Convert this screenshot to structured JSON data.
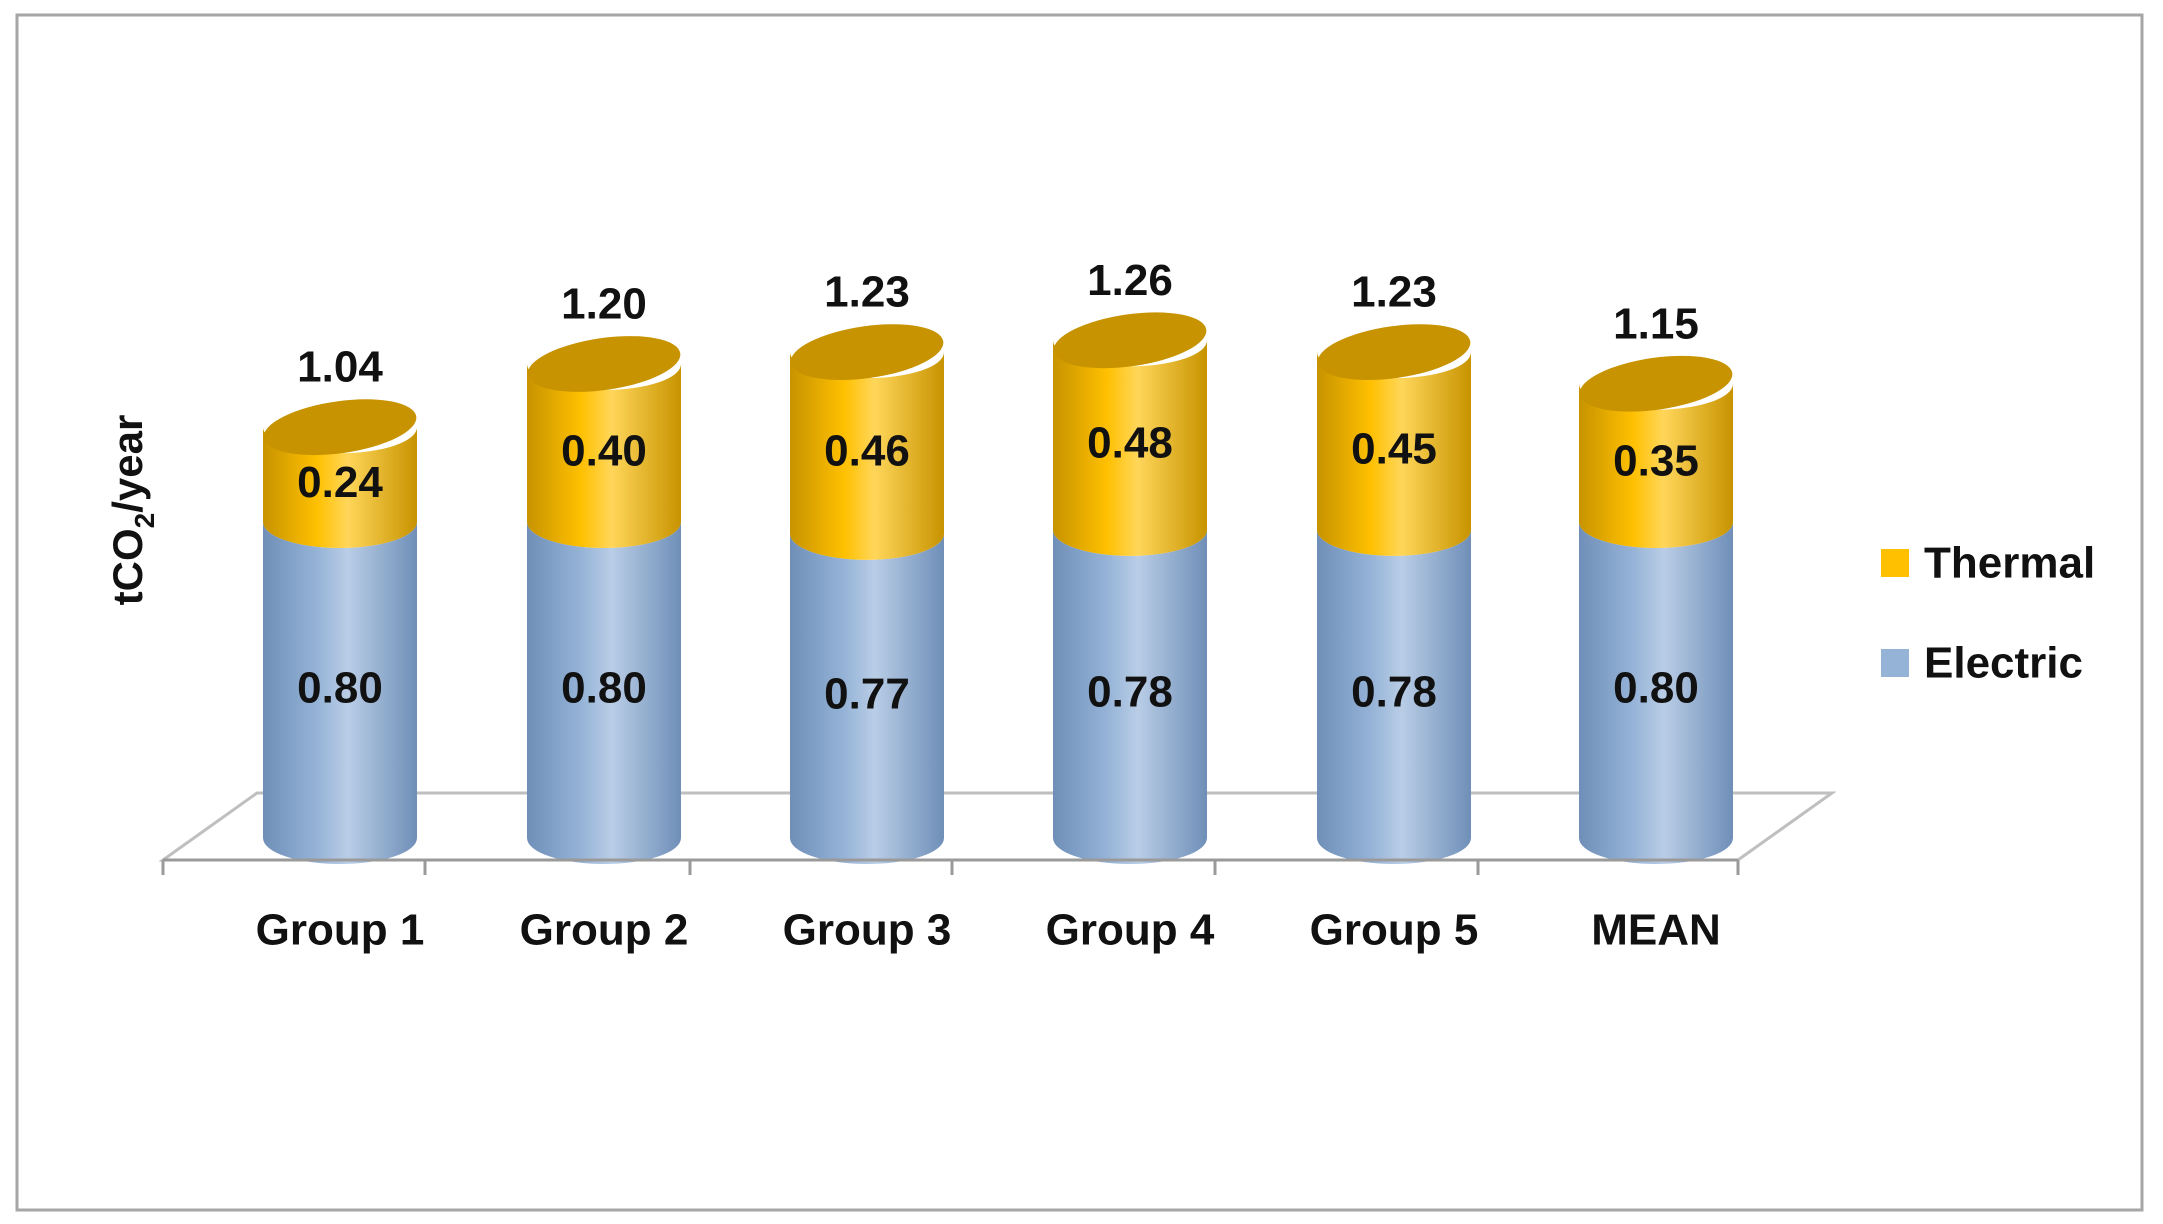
{
  "chart_data": {
    "type": "bar",
    "stacked": true,
    "style": "3d-cylinder",
    "categories": [
      "Group 1",
      "Group 2",
      "Group 3",
      "Group 4",
      "Group 5",
      "MEAN"
    ],
    "series": [
      {
        "name": "Electric",
        "color": "#95B3D7",
        "values": [
          0.8,
          0.8,
          0.77,
          0.78,
          0.78,
          0.8
        ]
      },
      {
        "name": "Thermal",
        "color": "#FFC000",
        "values": [
          0.24,
          0.4,
          0.46,
          0.48,
          0.45,
          0.35
        ]
      }
    ],
    "segment_labels": {
      "Electric": [
        "0.80",
        "0.80",
        "0.77",
        "0.78",
        "0.78",
        "0.80"
      ],
      "Thermal": [
        "0.24",
        "0.40",
        "0.46",
        "0.48",
        "0.45",
        "0.35"
      ]
    },
    "totals": [
      "1.04",
      "1.20",
      "1.23",
      "1.26",
      "1.23",
      "1.15"
    ],
    "total_values": [
      1.04,
      1.2,
      1.23,
      1.26,
      1.23,
      1.15
    ],
    "ylabel": {
      "prefix": "tCO",
      "subscript": "2",
      "suffix": "/year"
    },
    "ylim": [
      0,
      1.3
    ],
    "grid": false,
    "legend": {
      "placement": "right",
      "entries": [
        "Thermal",
        "Electric"
      ]
    },
    "colors": {
      "electric": "#95B3D7",
      "electric_dark": "#6F8FB8",
      "electric_light": "#B9CDE6",
      "thermal": "#FFC000",
      "thermal_dark": "#C79300",
      "thermal_light": "#FFD65A",
      "floor": "#FFFFFF",
      "floor_line": "#BFBFBF",
      "border": "#A6A6A6",
      "text": "#111111"
    }
  }
}
